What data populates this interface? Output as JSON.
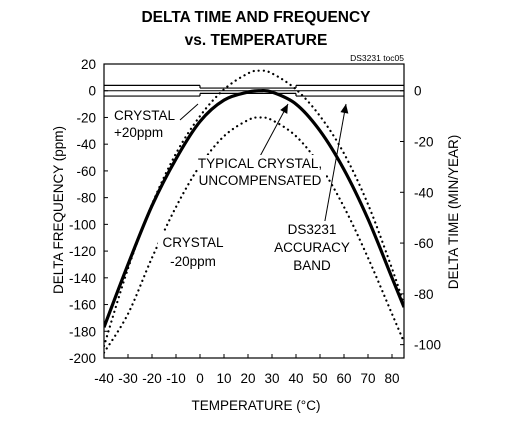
{
  "chart_data": {
    "type": "line",
    "title_lines": [
      "DELTA TIME AND FREQUENCY",
      "vs. TEMPERATURE"
    ],
    "figure_id": "DS3231 toc05",
    "xlabel": "TEMPERATURE (°C)",
    "ylabel": "DELTA FREQUENCY (ppm)",
    "y2label": "DELTA TIME (MIN/YEAR)",
    "xlim": [
      -40,
      85
    ],
    "ylim": [
      -200,
      20
    ],
    "y2lim": [
      -100,
      10.5
    ],
    "x_ticks": [
      "-40",
      "-30",
      "-20",
      "-10",
      "0",
      "10",
      "20",
      "30",
      "40",
      "50",
      "60",
      "70",
      "80"
    ],
    "x_tick_values": [
      -40,
      -30,
      -20,
      -10,
      0,
      10,
      20,
      30,
      40,
      50,
      60,
      70,
      80
    ],
    "y_ticks": [
      "20",
      "0",
      "-20",
      "-40",
      "-60",
      "-80",
      "-100",
      "-120",
      "-140",
      "-160",
      "-180",
      "-200"
    ],
    "y_tick_values": [
      20,
      0,
      -20,
      -40,
      -60,
      -80,
      -100,
      -120,
      -140,
      -160,
      -180,
      -200
    ],
    "y2_ticks": [
      "0",
      "-20",
      "-40",
      "-60",
      "-80",
      "-100"
    ],
    "y2_tick_values_ppm": [
      0,
      -38,
      -76,
      -114,
      -152,
      -190
    ],
    "series": [
      {
        "style": "dotted",
        "x": [
          -40,
          -30,
          -20,
          -10,
          0,
          10,
          20,
          25,
          30,
          40,
          50,
          60,
          70,
          80,
          85
        ],
        "y": [
          -191,
          -133,
          -85,
          -47,
          -19,
          1,
          13,
          15,
          13,
          1,
          -19,
          -47,
          -85,
          -133,
          -160
        ]
      },
      {
        "style": "solid-bold",
        "x": [
          -40,
          -30,
          -20,
          -10,
          0,
          10,
          20,
          25,
          30,
          40,
          50,
          60,
          70,
          80,
          85
        ],
        "y": [
          -177,
          -130,
          -86,
          -51,
          -23,
          -7,
          -1,
          0,
          -1,
          -10,
          -30,
          -59,
          -96,
          -140,
          -162
        ]
      },
      {
        "style": "dotted",
        "x": [
          -40,
          -30,
          -20,
          -10,
          0,
          10,
          20,
          25,
          30,
          40,
          50,
          60,
          70,
          80,
          85
        ],
        "y": [
          -196,
          -167,
          -125,
          -87,
          -56,
          -34,
          -22,
          -20,
          -22,
          -34,
          -56,
          -87,
          -125,
          -167,
          -188
        ]
      }
    ],
    "accuracy_band": {
      "segments": [
        {
          "x": [
            -40,
            0
          ],
          "y_top": 4,
          "y_bottom": -4
        },
        {
          "x": [
            0,
            40
          ],
          "y_top": 2,
          "y_bottom": -2
        },
        {
          "x": [
            40,
            85
          ],
          "y_top": 4,
          "y_bottom": -4
        }
      ]
    },
    "annotations": [
      {
        "id": "crystal_plus",
        "lines": [
          "CRYSTAL",
          "+20ppm"
        ]
      },
      {
        "id": "typical",
        "lines": [
          "TYPICAL CRYSTAL,",
          "UNCOMPENSATED"
        ]
      },
      {
        "id": "crystal_minus",
        "lines": [
          "CRYSTAL",
          "-20ppm"
        ]
      },
      {
        "id": "ds3231",
        "lines": [
          "DS3231",
          "ACCURACY",
          "BAND"
        ]
      }
    ],
    "grid": false
  }
}
